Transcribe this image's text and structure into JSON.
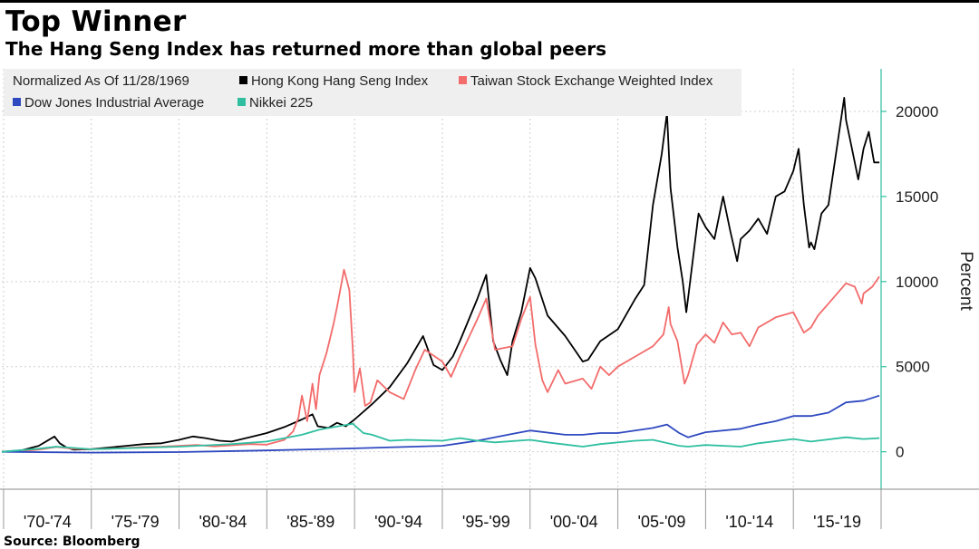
{
  "header": {
    "title": "Top Winner",
    "subtitle": "The Hang Seng Index has returned more than global peers"
  },
  "footer": {
    "source": "Source: Bloomberg"
  },
  "chart_data": {
    "type": "line",
    "title": "Top Winner",
    "subtitle": "The Hang Seng Index has returned more than global peers",
    "ylabel": "Percent",
    "xlabel": "",
    "ylim": [
      -2200,
      22500
    ],
    "xlim": [
      1969.9,
      2020.0
    ],
    "y_ticks": [
      0,
      5000,
      10000,
      15000,
      20000
    ],
    "y_tick_labels": [
      "0",
      "5000",
      "10000",
      "15000",
      "20000"
    ],
    "x_periods": [
      {
        "label": "'70-'74",
        "start": 1970,
        "end": 1975
      },
      {
        "label": "'75-'79",
        "start": 1975,
        "end": 1980
      },
      {
        "label": "'80-'84",
        "start": 1980,
        "end": 1985
      },
      {
        "label": "'85-'89",
        "start": 1985,
        "end": 1990
      },
      {
        "label": "'90-'94",
        "start": 1990,
        "end": 1995
      },
      {
        "label": "'95-'99",
        "start": 1995,
        "end": 2000
      },
      {
        "label": "'00-'04",
        "start": 2000,
        "end": 2005
      },
      {
        "label": "'05-'09",
        "start": 2005,
        "end": 2010
      },
      {
        "label": "'10-'14",
        "start": 2010,
        "end": 2015
      },
      {
        "label": "'15-'19",
        "start": 2015,
        "end": 2020
      }
    ],
    "legend_title": "Normalized As Of 11/28/1969",
    "grid": true,
    "legend_position": "top-left",
    "series": [
      {
        "name": "Hong Kong Hang Seng Index",
        "color": "#000000",
        "x": [
          1969.9,
          1971,
          1972,
          1972.9,
          1973.2,
          1973.6,
          1974,
          1974.9,
          1976,
          1977,
          1978,
          1979,
          1980,
          1980.8,
          1981.5,
          1982.3,
          1983,
          1984,
          1985,
          1986,
          1987,
          1987.6,
          1987.9,
          1988.5,
          1989,
          1989.5,
          1990,
          1991,
          1992,
          1993,
          1993.9,
          1994.5,
          1995,
          1995.6,
          1996,
          1997,
          1997.5,
          1997.9,
          1998.3,
          1998.7,
          1999,
          1999.5,
          2000,
          2000.3,
          2001,
          2002,
          2003,
          2003.3,
          2004,
          2005,
          2006,
          2006.5,
          2007,
          2007.5,
          2007.8,
          2008,
          2008.4,
          2008.7,
          2008.9,
          2009,
          2009.3,
          2009.6,
          2010,
          2010.5,
          2011,
          2011.4,
          2011.8,
          2012,
          2012.5,
          2013,
          2013.5,
          2014,
          2014.5,
          2015,
          2015.3,
          2015.6,
          2015.9,
          2016,
          2016.2,
          2016.6,
          2017,
          2017.5,
          2017.9,
          2018,
          2018.3,
          2018.7,
          2019,
          2019.3,
          2019.6,
          2019.9
        ],
        "values": [
          0,
          80,
          350,
          900,
          500,
          250,
          120,
          150,
          250,
          350,
          450,
          500,
          700,
          900,
          800,
          650,
          600,
          850,
          1100,
          1450,
          1900,
          2200,
          1500,
          1400,
          1700,
          1500,
          1900,
          2800,
          3800,
          5200,
          6800,
          5100,
          4800,
          5600,
          6500,
          9000,
          10400,
          6500,
          5400,
          4500,
          6500,
          8200,
          10800,
          10200,
          8000,
          6800,
          5300,
          5400,
          6500,
          7200,
          9000,
          9800,
          14500,
          17500,
          19900,
          15500,
          12000,
          10000,
          8200,
          9000,
          11500,
          14000,
          13200,
          12500,
          15000,
          13000,
          11200,
          12500,
          13000,
          13700,
          12800,
          15000,
          15300,
          16500,
          17800,
          14500,
          12000,
          12300,
          11900,
          14000,
          14500,
          18000,
          20800,
          19500,
          18000,
          16000,
          17800,
          18800,
          17000,
          17000
        ]
      },
      {
        "name": "Taiwan Stock Exchange Weighted Index",
        "color": "#f36b6b",
        "x": [
          1969.9,
          1971,
          1972,
          1973,
          1974,
          1975,
          1976,
          1977,
          1978,
          1979,
          1980,
          1981,
          1982,
          1983,
          1984,
          1985,
          1986,
          1986.5,
          1986.8,
          1987,
          1987.3,
          1987.6,
          1987.8,
          1988,
          1988.4,
          1988.8,
          1989,
          1989.4,
          1989.7,
          1989.9,
          1990,
          1990.3,
          1990.6,
          1990.9,
          1991.3,
          1992,
          1992.8,
          1993.5,
          1994,
          1995,
          1995.5,
          1996,
          1997,
          1997.5,
          1998,
          1999,
          1999.5,
          2000,
          2000.3,
          2000.7,
          2001,
          2001.6,
          2002,
          2003,
          2003.5,
          2004,
          2004.5,
          2005,
          2006,
          2007,
          2007.6,
          2007.9,
          2008,
          2008.4,
          2008.8,
          2009,
          2009.5,
          2010,
          2010.5,
          2011,
          2011.5,
          2012,
          2012.5,
          2013,
          2014,
          2015,
          2015.6,
          2016,
          2016.4,
          2017,
          2018,
          2018.5,
          2018.9,
          2019,
          2019.5,
          2019.9
        ],
        "values": [
          0,
          40,
          120,
          280,
          180,
          150,
          180,
          220,
          280,
          300,
          350,
          400,
          320,
          380,
          450,
          420,
          700,
          1200,
          2000,
          3300,
          1800,
          4000,
          2500,
          4500,
          5800,
          7500,
          8500,
          10700,
          9500,
          6000,
          3500,
          4900,
          2700,
          2900,
          4200,
          3500,
          3100,
          4900,
          6000,
          5300,
          4400,
          5600,
          7800,
          9000,
          6000,
          6200,
          7800,
          9100,
          6300,
          4200,
          3500,
          4800,
          4000,
          4300,
          3700,
          5000,
          4500,
          5000,
          5600,
          6200,
          6900,
          8500,
          7500,
          6500,
          4000,
          4500,
          6300,
          6900,
          6400,
          7600,
          6900,
          7000,
          6200,
          7300,
          7900,
          8200,
          7000,
          7300,
          8000,
          8700,
          9900,
          9700,
          8700,
          9300,
          9700,
          10300
        ]
      },
      {
        "name": "Dow Jones Industrial Average",
        "color": "#2f49c0",
        "x": [
          1969.9,
          1975,
          1980,
          1985,
          1990,
          1995,
          1997,
          1999,
          2000,
          2002,
          2003,
          2004,
          2005,
          2007,
          2007.8,
          2008.5,
          2009,
          2010,
          2012,
          2013,
          2014,
          2015,
          2016,
          2017,
          2018,
          2019,
          2019.9
        ],
        "values": [
          0,
          -50,
          -20,
          80,
          200,
          350,
          650,
          1050,
          1250,
          1000,
          1000,
          1100,
          1100,
          1400,
          1600,
          1100,
          850,
          1150,
          1350,
          1600,
          1800,
          2100,
          2100,
          2300,
          2900,
          3000,
          3300
        ]
      },
      {
        "name": "Nikkei 225",
        "color": "#2fbfa0",
        "x": [
          1969.9,
          1972,
          1973,
          1975,
          1980,
          1983,
          1985,
          1987,
          1988,
          1989.9,
          1990.5,
          1991,
          1992,
          1993,
          1995,
          1996,
          1997,
          1998,
          2000,
          2001,
          2003,
          2004,
          2006,
          2007,
          2008.5,
          2009,
          2010,
          2012,
          2013,
          2015,
          2016,
          2018,
          2019,
          2019.9
        ],
        "values": [
          0,
          180,
          300,
          150,
          300,
          450,
          600,
          1000,
          1300,
          1650,
          1100,
          1000,
          650,
          700,
          650,
          800,
          650,
          550,
          700,
          550,
          300,
          450,
          650,
          700,
          350,
          300,
          400,
          300,
          500,
          750,
          600,
          850,
          750,
          800
        ]
      }
    ]
  }
}
